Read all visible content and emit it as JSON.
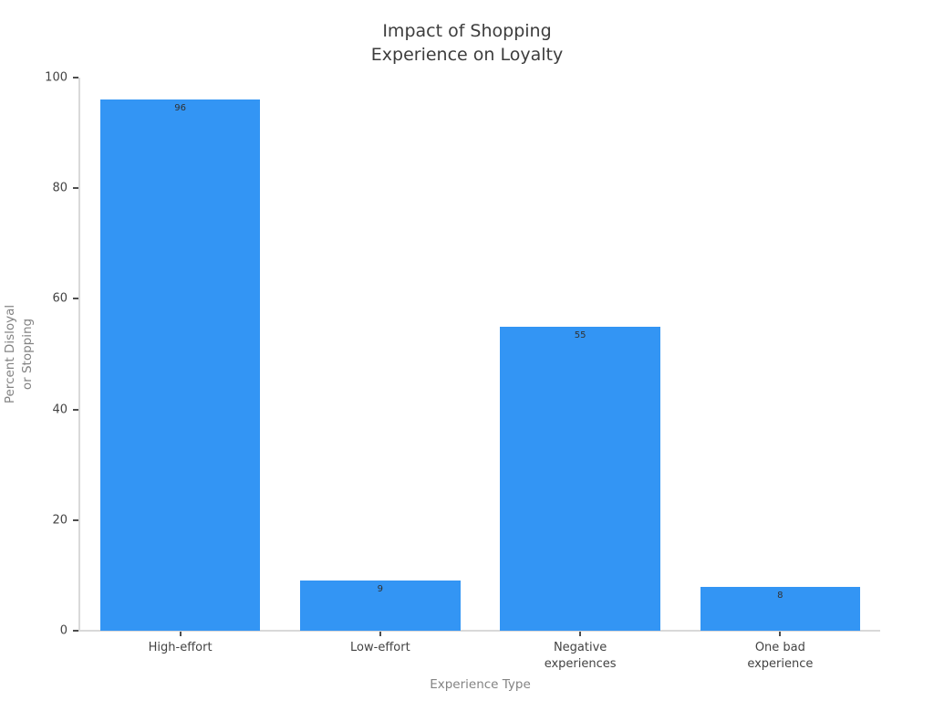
{
  "chart_data": {
    "type": "bar",
    "title": "Impact of Shopping\nExperience on Loyalty",
    "xlabel": "Experience Type",
    "ylabel": "Percent Disloyal\nor Stopping",
    "categories": [
      "High-effort",
      "Low-effort",
      "Negative\nexperiences",
      "One bad\nexperience"
    ],
    "values": [
      96,
      9,
      55,
      8
    ],
    "value_labels": [
      "96",
      "9",
      "55",
      "8"
    ],
    "ylim": [
      0,
      100
    ],
    "yticks": [
      0,
      20,
      40,
      60,
      80,
      100
    ],
    "bar_color": "#3395f4",
    "background": "#ffffff",
    "grid": false,
    "legend": false
  }
}
